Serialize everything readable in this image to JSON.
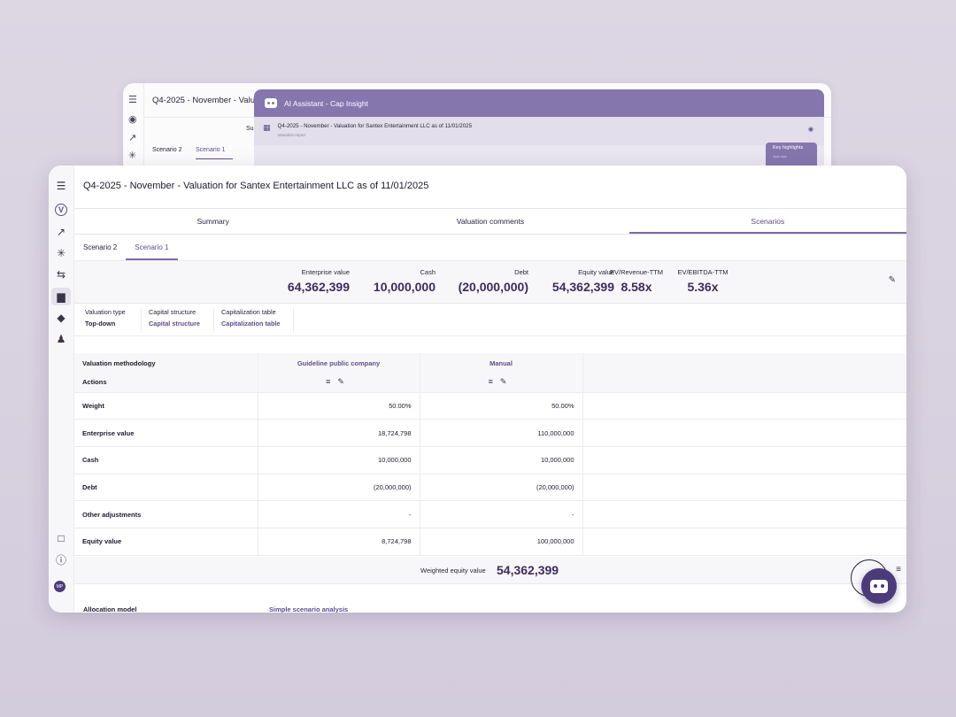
{
  "back_window": {
    "title": "Q4-2025 - November - Valuati",
    "summary_fragment": "Su",
    "sub_tabs": [
      "Scenario 2",
      "Scenario 1"
    ]
  },
  "ai_assistant": {
    "title": "AI Assistant - Cap Insight",
    "report_title": "Q4-2025 - November - Valuation for Santex Entertainment LLC as of 11/01/2025",
    "report_subtitle": "Valuation report",
    "highlights_title": "Key highlights",
    "highlights_sub": "Just now"
  },
  "sidebar": {
    "icons": [
      "menu-icon",
      "logo-icon",
      "trend-icon",
      "branch-icon",
      "transfer-icon",
      "bar-chart-icon",
      "tag-icon",
      "user-icon"
    ],
    "bottom_icons": [
      "chat-icon",
      "help-icon"
    ],
    "avatar": "MP"
  },
  "page": {
    "title": "Q4-2025 - November - Valuation for Santex Entertainment LLC as of 11/01/2025"
  },
  "main_tabs": [
    {
      "label": "Summary"
    },
    {
      "label": "Valuation comments"
    },
    {
      "label": "Scenarios"
    }
  ],
  "sub_tabs": [
    {
      "label": "Scenario 2"
    },
    {
      "label": "Scenario 1"
    }
  ],
  "kpis": [
    {
      "label": "Enterprise value",
      "value": "64,362,399"
    },
    {
      "label": "Cash",
      "value": "10,000,000"
    },
    {
      "label": "Debt",
      "value": "(20,000,000)"
    },
    {
      "label": "Equity value",
      "value": "54,362,399"
    },
    {
      "label": "EV/Revenue-TTM",
      "value": "8.58x"
    },
    {
      "label": "EV/EBITDA-TTM",
      "value": "5.36x"
    }
  ],
  "valuation_info": {
    "type_label": "Valuation type",
    "type_value": "Top-down",
    "capital_label": "Capital structure",
    "capital_value": "Capital structure",
    "cap_table_label": "Capitalization table",
    "cap_table_value": "Capitalization table"
  },
  "table": {
    "methodology_label": "Valuation methodology",
    "actions_label": "Actions",
    "columns": [
      "Guideline public company",
      "Manual"
    ],
    "rows": [
      {
        "label": "Weight",
        "values": [
          "50.00%",
          "50.00%"
        ]
      },
      {
        "label": "Enterprise value",
        "values": [
          "18,724,798",
          "110,000,000"
        ]
      },
      {
        "label": "Cash",
        "values": [
          "10,000,000",
          "10,000,000"
        ]
      },
      {
        "label": "Debt",
        "values": [
          "(20,000,000)",
          "(20,000,000)"
        ]
      },
      {
        "label": "Other adjustments",
        "values": [
          "-",
          "-"
        ]
      },
      {
        "label": "Equity value",
        "values": [
          "8,724,798",
          "100,000,000"
        ]
      }
    ]
  },
  "weighted": {
    "label": "Weighted equity value",
    "value": "54,362,399"
  },
  "allocation": {
    "label": "Allocation model",
    "value": "Simple scenario analysis"
  },
  "colors": {
    "accent": "#5d4f86",
    "header_purple": "#8576ae",
    "fab": "#4b3b7a"
  }
}
